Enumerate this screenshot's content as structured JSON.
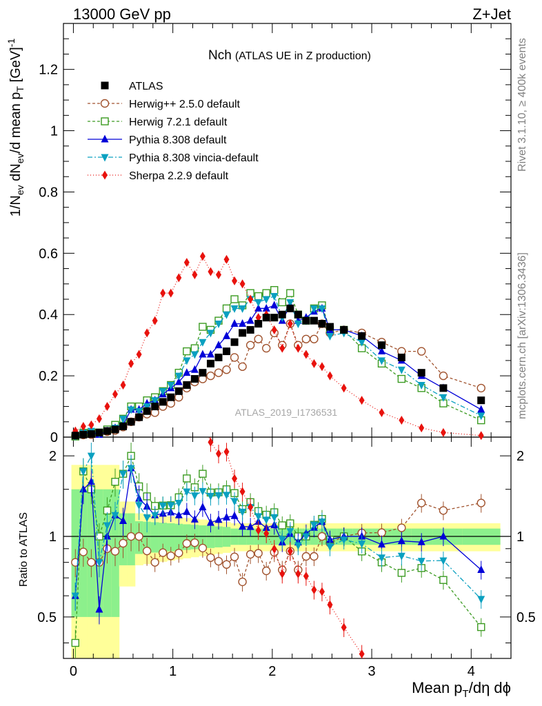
{
  "header": {
    "energy": "13000 GeV pp",
    "process": "Z+Jet"
  },
  "side": {
    "rivet": "Rivet 3.1.10, ≥ 400k events",
    "mcplots": "mcplots.cern.ch [arXiv:1306.3436]"
  },
  "watermark": "ATLAS_2019_I1736531",
  "chart_data": {
    "type": "line",
    "title_main": "Nch",
    "title_sub": "(ATLAS UE in Z production)",
    "ylabel": "1/N_ev dN_ev/d mean p_T [GeV]^-1",
    "xlabel": "Mean p_T/dη dϕ",
    "ratio_ylabel": "Ratio to ATLAS",
    "xlim": [
      -0.1,
      4.4
    ],
    "ylim": [
      0,
      1.35
    ],
    "ratio_ylim": [
      0.35,
      2.35
    ],
    "xticks": [
      "0",
      "1",
      "2",
      "3",
      "4"
    ],
    "yticks": [
      "0",
      "0.2",
      "0.4",
      "0.6",
      "0.8",
      "1",
      "1.2"
    ],
    "ratio_yticks": [
      "0.5",
      "1",
      "2"
    ],
    "x": [
      0.02,
      0.1,
      0.18,
      0.26,
      0.34,
      0.42,
      0.5,
      0.58,
      0.66,
      0.74,
      0.82,
      0.9,
      0.98,
      1.06,
      1.14,
      1.22,
      1.3,
      1.38,
      1.46,
      1.54,
      1.62,
      1.7,
      1.78,
      1.86,
      1.94,
      2.02,
      2.1,
      2.18,
      2.26,
      2.34,
      2.42,
      2.5,
      2.58,
      2.72,
      2.9,
      3.1,
      3.3,
      3.5,
      3.72,
      4.1
    ],
    "series": [
      {
        "name": "ATLAS",
        "style": "data",
        "color": "#000000",
        "marker": "square-filled",
        "dash": "",
        "values": [
          0.005,
          0.008,
          0.01,
          0.015,
          0.02,
          0.025,
          0.035,
          0.05,
          0.065,
          0.085,
          0.1,
          0.115,
          0.13,
          0.15,
          0.17,
          0.19,
          0.21,
          0.24,
          0.26,
          0.28,
          0.31,
          0.34,
          0.35,
          0.37,
          0.39,
          0.39,
          0.4,
          0.42,
          0.4,
          0.38,
          0.38,
          0.37,
          0.36,
          0.35,
          0.33,
          0.3,
          0.26,
          0.21,
          0.16,
          0.12
        ]
      },
      {
        "name": "Herwig++ 2.5.0 default",
        "style": "mc",
        "color": "#a0522d",
        "marker": "circle-open",
        "dash": "4,3",
        "values": [
          0.004,
          0.007,
          0.008,
          0.012,
          0.018,
          0.022,
          0.033,
          0.05,
          0.065,
          0.075,
          0.08,
          0.1,
          0.11,
          0.13,
          0.16,
          0.18,
          0.19,
          0.2,
          0.21,
          0.22,
          0.26,
          0.23,
          0.3,
          0.32,
          0.29,
          0.34,
          0.3,
          0.37,
          0.3,
          0.32,
          0.32,
          0.37,
          0.34,
          0.35,
          0.34,
          0.31,
          0.28,
          0.28,
          0.2,
          0.16
        ]
      },
      {
        "name": "Herwig 7.2.1 default",
        "style": "mc",
        "color": "#3a9a20",
        "marker": "square-open",
        "dash": "4,3",
        "values": [
          0.002,
          0.014,
          0.015,
          0.015,
          0.025,
          0.04,
          0.06,
          0.1,
          0.1,
          0.12,
          0.13,
          0.15,
          0.17,
          0.21,
          0.28,
          0.29,
          0.36,
          0.35,
          0.38,
          0.42,
          0.45,
          0.43,
          0.47,
          0.46,
          0.47,
          0.48,
          0.44,
          0.47,
          0.4,
          0.38,
          0.42,
          0.43,
          0.35,
          0.35,
          0.29,
          0.24,
          0.19,
          0.16,
          0.11,
          0.055
        ]
      },
      {
        "name": "Pythia 8.308 default",
        "style": "mc",
        "color": "#0000d8",
        "marker": "triangle-up",
        "dash": "",
        "values": [
          0.003,
          0.012,
          0.016,
          0.008,
          0.02,
          0.03,
          0.04,
          0.09,
          0.09,
          0.11,
          0.12,
          0.14,
          0.16,
          0.18,
          0.21,
          0.22,
          0.27,
          0.27,
          0.3,
          0.33,
          0.37,
          0.37,
          0.38,
          0.42,
          0.42,
          0.43,
          0.38,
          0.43,
          0.38,
          0.39,
          0.41,
          0.42,
          0.35,
          0.35,
          0.33,
          0.28,
          0.25,
          0.2,
          0.16,
          0.09
        ]
      },
      {
        "name": "Pythia 8.308 vincia-default",
        "style": "mc",
        "color": "#0aa0c0",
        "marker": "triangle-down",
        "dash": "7,3,2,3",
        "values": [
          0.003,
          0.014,
          0.02,
          0.012,
          0.022,
          0.03,
          0.06,
          0.09,
          0.085,
          0.1,
          0.12,
          0.15,
          0.17,
          0.2,
          0.25,
          0.27,
          0.31,
          0.34,
          0.37,
          0.4,
          0.42,
          0.42,
          0.45,
          0.44,
          0.45,
          0.46,
          0.39,
          0.44,
          0.37,
          0.38,
          0.42,
          0.42,
          0.33,
          0.34,
          0.31,
          0.25,
          0.22,
          0.17,
          0.13,
          0.07
        ]
      },
      {
        "name": "Sherpa 2.2.9 default",
        "style": "mc",
        "color": "#e8120d",
        "marker": "diamond",
        "dash": "1,3",
        "values": [
          0.02,
          0.035,
          0.04,
          0.06,
          0.1,
          0.14,
          0.17,
          0.24,
          0.27,
          0.34,
          0.38,
          0.47,
          0.47,
          0.52,
          0.57,
          0.53,
          0.59,
          0.54,
          0.53,
          0.58,
          0.51,
          0.5,
          0.45,
          0.39,
          0.4,
          0.35,
          0.29,
          0.37,
          0.29,
          0.27,
          0.24,
          0.23,
          0.2,
          0.16,
          0.12,
          0.08,
          0.055,
          0.03,
          0.015,
          0.005
        ]
      }
    ]
  }
}
